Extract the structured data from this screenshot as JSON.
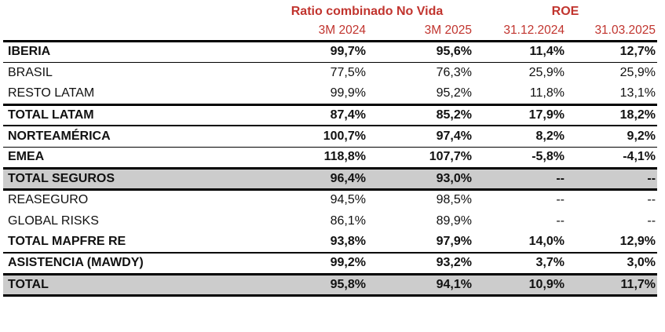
{
  "colors": {
    "accent_red": "#c1342e",
    "highlight_gray": "#cccccc",
    "line_black": "#000000"
  },
  "chart_data": {
    "type": "table",
    "title": "Ratio combinado No Vida / ROE",
    "column_groups": [
      "Ratio combinado No Vida",
      "ROE"
    ],
    "columns": [
      "3M 2024",
      "3M 2025",
      "31.12.2024",
      "31.03.2025"
    ],
    "rows": [
      {
        "label": "IBERIA",
        "values": [
          "99,7%",
          "95,6%",
          "11,4%",
          "12,7%"
        ]
      },
      {
        "label": "BRASIL",
        "values": [
          "77,5%",
          "76,3%",
          "25,9%",
          "25,9%"
        ]
      },
      {
        "label": "RESTO LATAM",
        "values": [
          "99,9%",
          "95,2%",
          "11,8%",
          "13,1%"
        ]
      },
      {
        "label": "TOTAL LATAM",
        "values": [
          "87,4%",
          "85,2%",
          "17,9%",
          "18,2%"
        ]
      },
      {
        "label": "NORTEAMÉRICA",
        "values": [
          "100,7%",
          "97,4%",
          "8,2%",
          "9,2%"
        ]
      },
      {
        "label": "EMEA",
        "values": [
          "118,8%",
          "107,7%",
          "-5,8%",
          "-4,1%"
        ]
      },
      {
        "label": "TOTAL SEGUROS",
        "values": [
          "96,4%",
          "93,0%",
          "--",
          "--"
        ]
      },
      {
        "label": "REASEGURO",
        "values": [
          "94,5%",
          "98,5%",
          "--",
          "--"
        ]
      },
      {
        "label": "GLOBAL RISKS",
        "values": [
          "86,1%",
          "89,9%",
          "--",
          "--"
        ]
      },
      {
        "label": "TOTAL MAPFRE RE",
        "values": [
          "93,8%",
          "97,9%",
          "14,0%",
          "12,9%"
        ]
      },
      {
        "label": "ASISTENCIA (MAWDY)",
        "values": [
          "99,2%",
          "93,2%",
          "3,7%",
          "3,0%"
        ]
      },
      {
        "label": "TOTAL",
        "values": [
          "95,8%",
          "94,1%",
          "10,9%",
          "11,7%"
        ]
      }
    ]
  },
  "header": {
    "group_ratio": "Ratio combinado No Vida",
    "group_roe": "ROE",
    "col1": "3M 2024",
    "col2": "3M 2025",
    "col3": "31.12.2024",
    "col4": "31.03.2025"
  },
  "rows": [
    {
      "label": "IBERIA",
      "values": [
        "99,7%",
        "95,6%",
        "11,4%",
        "12,7%"
      ]
    },
    {
      "label": "BRASIL",
      "values": [
        "77,5%",
        "76,3%",
        "25,9%",
        "25,9%"
      ]
    },
    {
      "label": "RESTO LATAM",
      "values": [
        "99,9%",
        "95,2%",
        "11,8%",
        "13,1%"
      ]
    },
    {
      "label": "TOTAL LATAM",
      "values": [
        "87,4%",
        "85,2%",
        "17,9%",
        "18,2%"
      ]
    },
    {
      "label": "NORTEAMÉRICA",
      "values": [
        "100,7%",
        "97,4%",
        "8,2%",
        "9,2%"
      ]
    },
    {
      "label": "EMEA",
      "values": [
        "118,8%",
        "107,7%",
        "-5,8%",
        "-4,1%"
      ]
    },
    {
      "label": "TOTAL SEGUROS",
      "values": [
        "96,4%",
        "93,0%",
        "--",
        "--"
      ]
    },
    {
      "label": "REASEGURO",
      "values": [
        "94,5%",
        "98,5%",
        "--",
        "--"
      ]
    },
    {
      "label": "GLOBAL RISKS",
      "values": [
        "86,1%",
        "89,9%",
        "--",
        "--"
      ]
    },
    {
      "label": "TOTAL MAPFRE RE",
      "values": [
        "93,8%",
        "97,9%",
        "14,0%",
        "12,9%"
      ]
    },
    {
      "label": "ASISTENCIA (MAWDY)",
      "values": [
        "99,2%",
        "93,2%",
        "3,7%",
        "3,0%"
      ]
    },
    {
      "label": "TOTAL",
      "values": [
        "95,8%",
        "94,1%",
        "10,9%",
        "11,7%"
      ]
    }
  ]
}
